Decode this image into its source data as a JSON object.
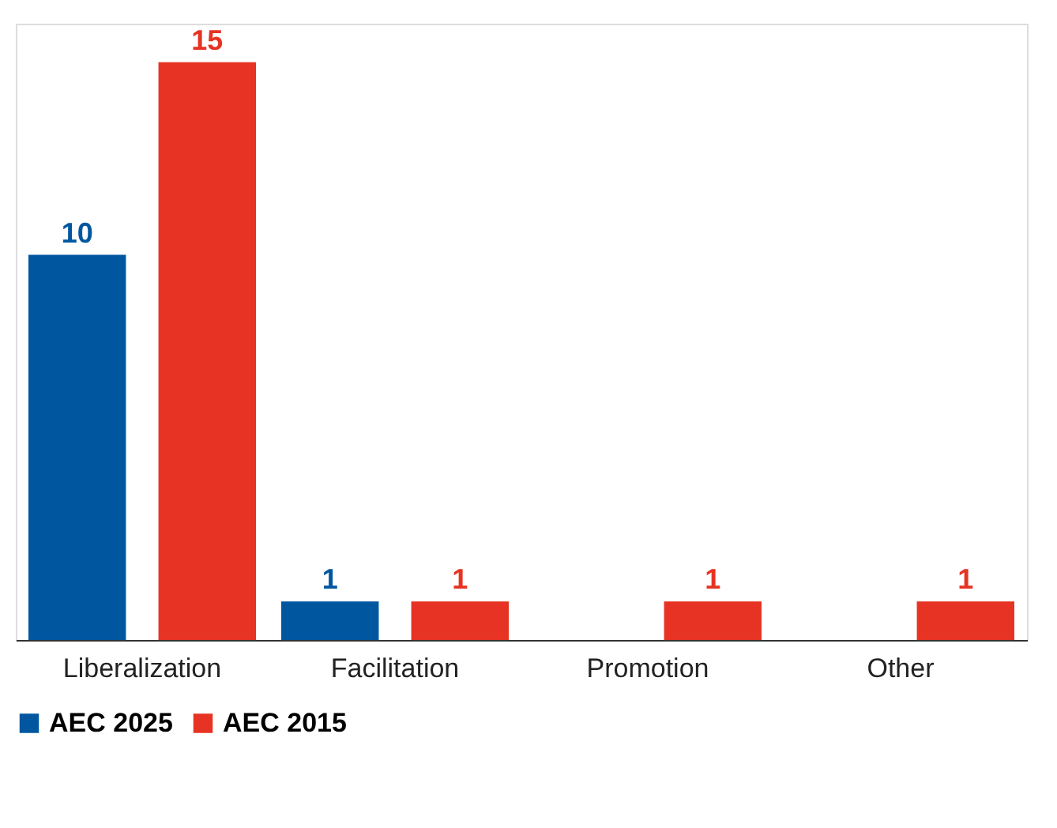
{
  "chart_data": {
    "type": "bar",
    "categories": [
      "Liberalization",
      "Facilitation",
      "Promotion",
      "Other"
    ],
    "series": [
      {
        "name": "AEC 2025",
        "color": "#0057a0",
        "values": [
          10,
          1,
          null,
          null
        ]
      },
      {
        "name": "AEC 2015",
        "color": "#e63323",
        "values": [
          15,
          1,
          1,
          1
        ]
      }
    ],
    "data_labels": true,
    "legend": "bottom",
    "grid": false
  }
}
